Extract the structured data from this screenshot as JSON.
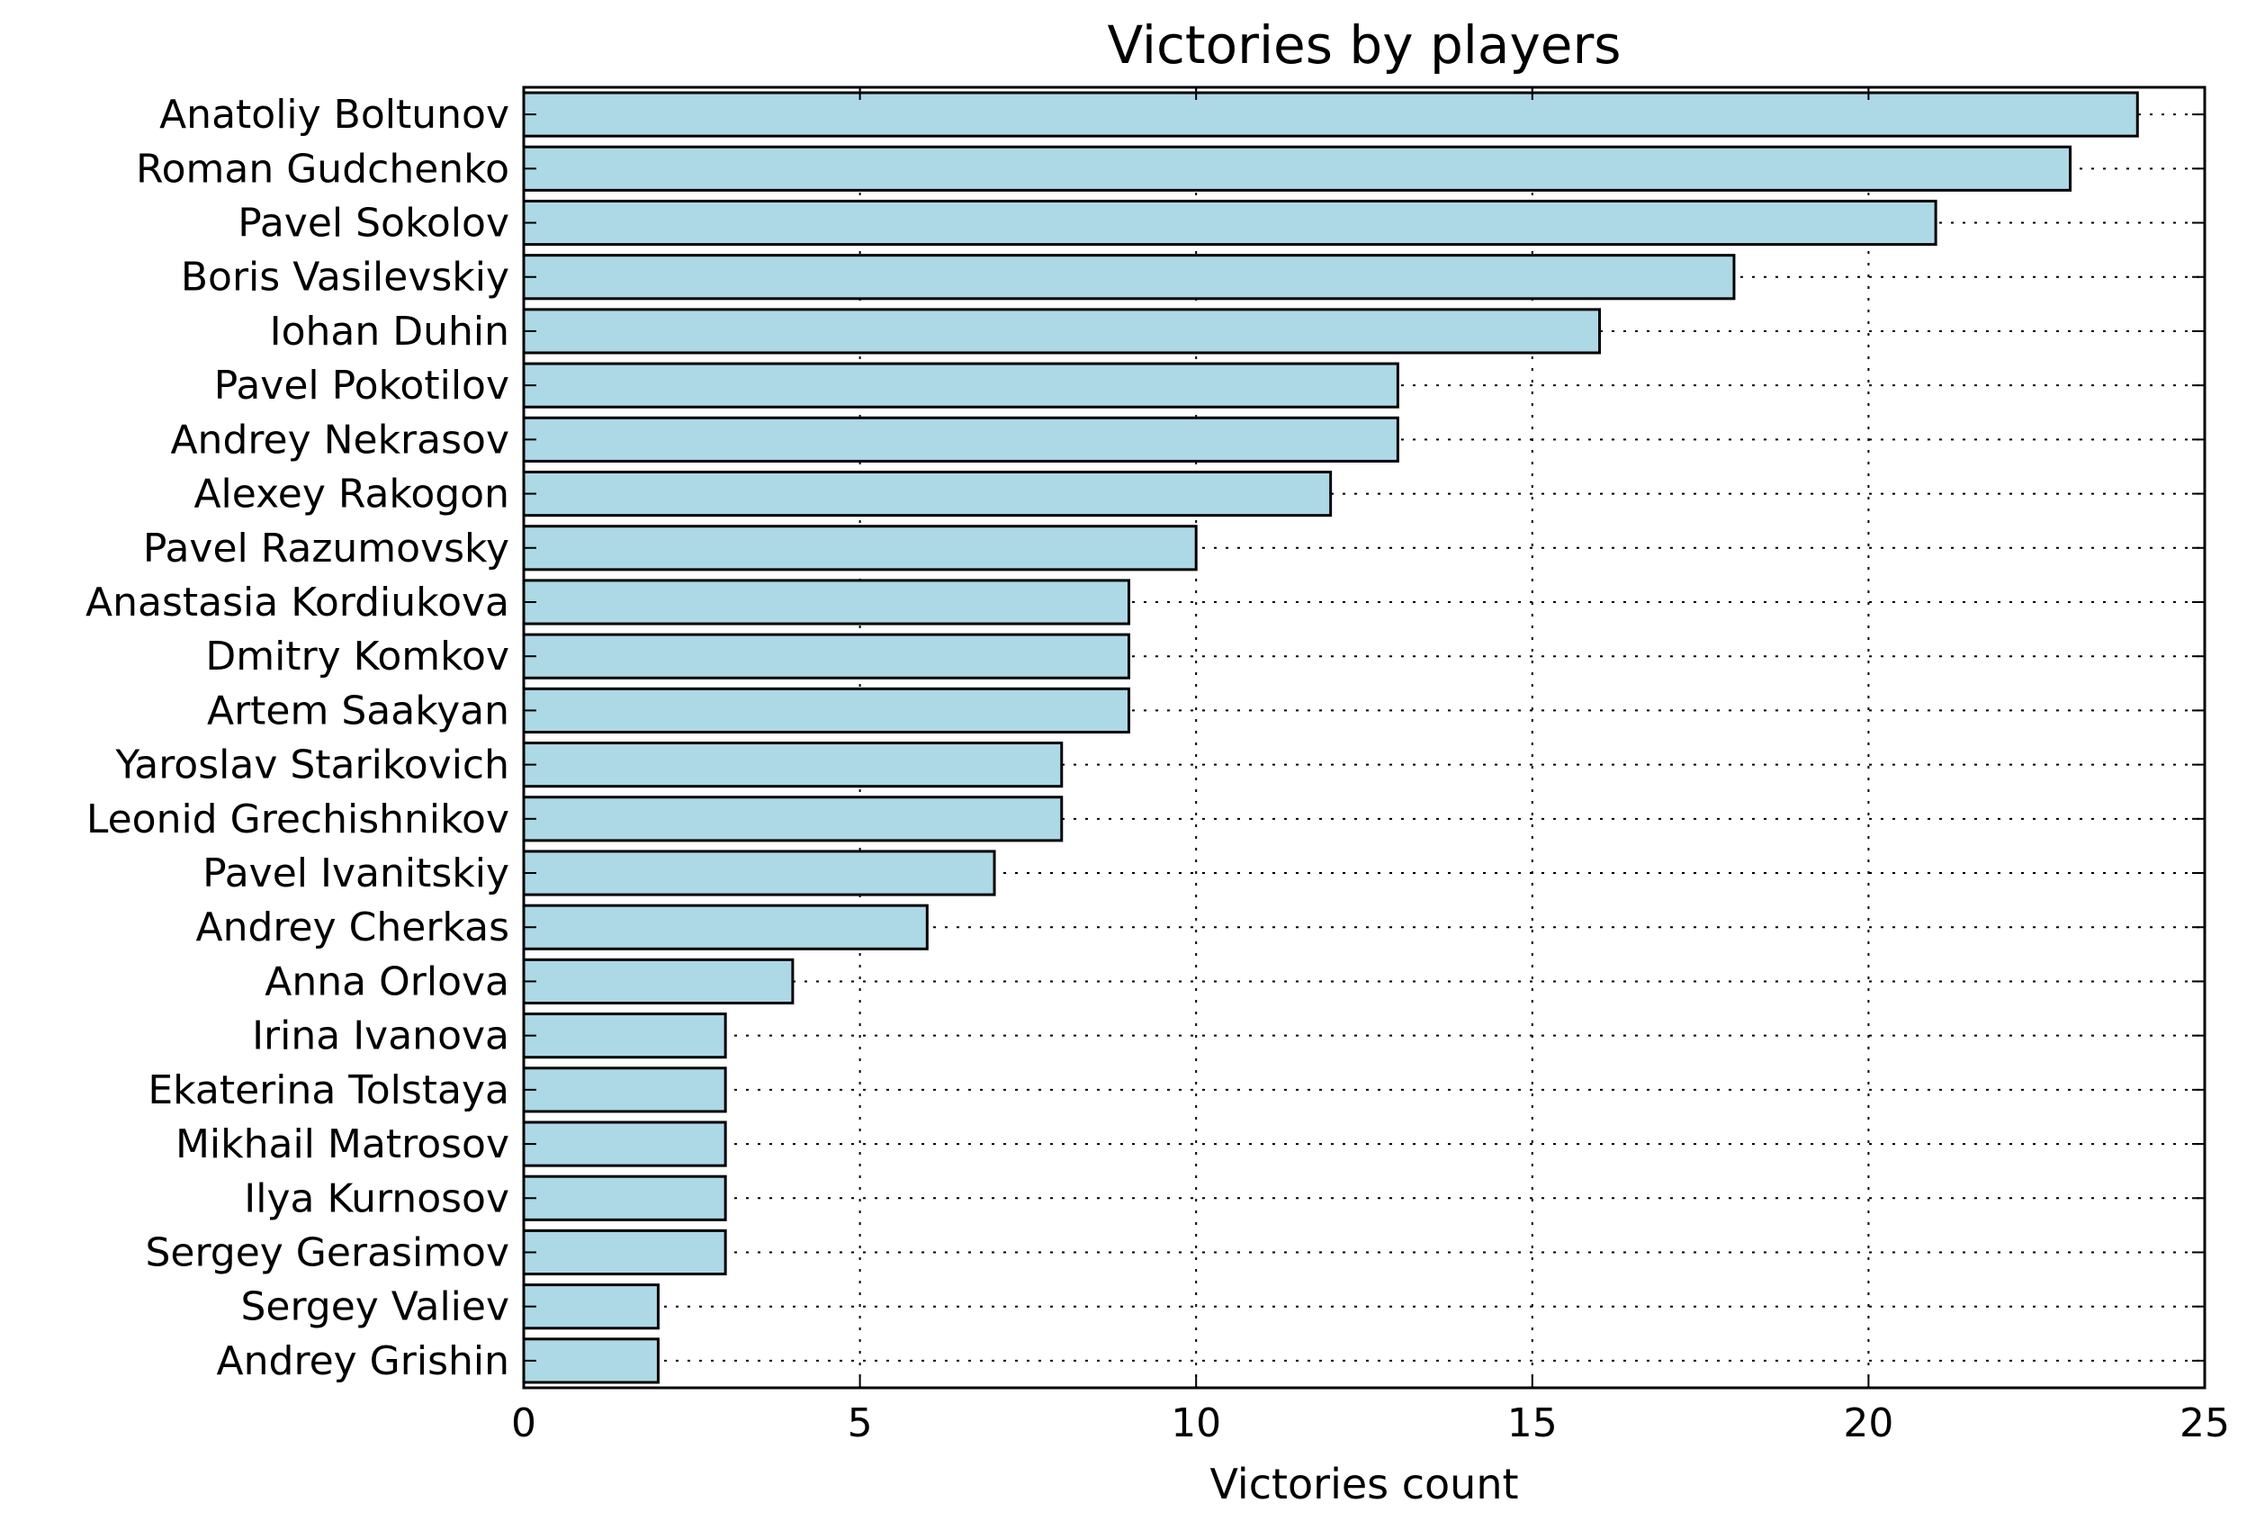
{
  "chart_data": {
    "type": "bar",
    "orientation": "horizontal",
    "title": "Victories by players",
    "xlabel": "Victories count",
    "ylabel": "",
    "xlim": [
      0,
      25
    ],
    "xticks": [
      "0",
      "5",
      "10",
      "15",
      "20",
      "25"
    ],
    "grid": true,
    "grid_style": "dotted",
    "bar_color": "#add8e6",
    "edge_color": "#000000",
    "categories": [
      "Anatoliy Boltunov",
      "Roman Gudchenko",
      "Pavel Sokolov",
      "Boris Vasilevskiy",
      "Iohan Duhin",
      "Pavel Pokotilov",
      "Andrey Nekrasov",
      "Alexey Rakogon",
      "Pavel Razumovsky",
      "Anastasia Kordiukova",
      "Dmitry Komkov",
      "Artem Saakyan",
      "Yaroslav Starikovich",
      "Leonid Grechishnikov",
      "Pavel Ivanitskiy",
      "Andrey Cherkas",
      "Anna Orlova",
      "Irina Ivanova",
      "Ekaterina Tolstaya",
      "Mikhail Matrosov",
      "Ilya Kurnosov",
      "Sergey Gerasimov",
      "Sergey Valiev",
      "Andrey Grishin"
    ],
    "values": [
      24,
      23,
      21,
      18,
      16,
      13,
      13,
      12,
      10,
      9,
      9,
      9,
      8,
      8,
      7,
      6,
      4,
      3,
      3,
      3,
      3,
      3,
      2,
      2
    ]
  }
}
